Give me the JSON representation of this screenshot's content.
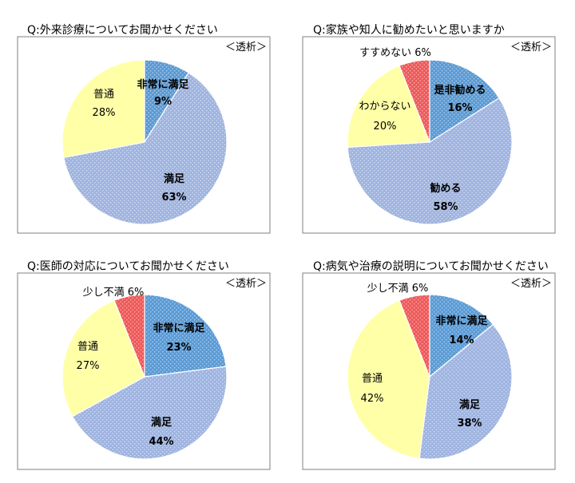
{
  "chart_data": [
    {
      "type": "pie",
      "title": "Q:外来診療についてお聞かせください",
      "tag": "＜透析＞",
      "slices": [
        {
          "label": "非常に満足",
          "value": 9,
          "display": "9%",
          "color": "#5b9bd5"
        },
        {
          "label": "満足",
          "value": 63,
          "display": "63%",
          "color": "#9fb4e0"
        },
        {
          "label": "普通",
          "value": 28,
          "display": "28%",
          "color": "#ffffa8"
        }
      ]
    },
    {
      "type": "pie",
      "title": "Q:家族や知人に勧めたいと思いますか",
      "tag": "＜透析＞",
      "slices": [
        {
          "label": "是非勧める",
          "value": 16,
          "display": "16%",
          "color": "#5b9bd5"
        },
        {
          "label": "勧める",
          "value": 58,
          "display": "58%",
          "color": "#9fb4e0"
        },
        {
          "label": "わからない",
          "value": 20,
          "display": "20%",
          "color": "#ffffa8"
        },
        {
          "label": "すすめない",
          "value": 6,
          "display": "6%",
          "color": "#ee5a5a"
        }
      ]
    },
    {
      "type": "pie",
      "title": "Q:医師の対応についてお聞かせください",
      "tag": "＜透析＞",
      "slices": [
        {
          "label": "非常に満足",
          "value": 23,
          "display": "23%",
          "color": "#5b9bd5"
        },
        {
          "label": "満足",
          "value": 44,
          "display": "44%",
          "color": "#9fb4e0"
        },
        {
          "label": "普通",
          "value": 27,
          "display": "27%",
          "color": "#ffffa8"
        },
        {
          "label": "少し不満",
          "value": 6,
          "display": "6%",
          "color": "#ee5a5a"
        }
      ]
    },
    {
      "type": "pie",
      "title": "Q:病気や治療の説明についてお聞かせください",
      "tag": "＜透析＞",
      "slices": [
        {
          "label": "非常に満足",
          "value": 14,
          "display": "14%",
          "color": "#5b9bd5"
        },
        {
          "label": "満足",
          "value": 38,
          "display": "38%",
          "color": "#9fb4e0"
        },
        {
          "label": "普通",
          "value": 42,
          "display": "42%",
          "color": "#ffffa8"
        },
        {
          "label": "少し不満",
          "value": 6,
          "display": "6%",
          "color": "#ee5a5a"
        }
      ]
    }
  ]
}
